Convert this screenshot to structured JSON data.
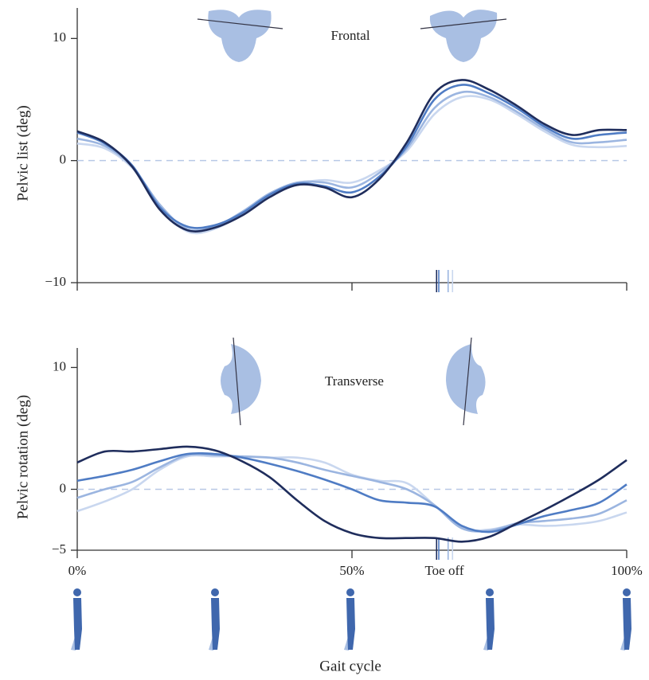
{
  "chart_data": [
    {
      "type": "line",
      "ylabel": "Pelvic list (deg)",
      "annotation": "Frontal",
      "x": [
        0,
        5,
        10,
        15,
        20,
        25,
        30,
        35,
        40,
        45,
        50,
        55,
        60,
        65,
        70,
        75,
        80,
        85,
        90,
        95,
        100
      ],
      "xlim": [
        0,
        100
      ],
      "xticks": [
        0,
        50,
        100
      ],
      "show_xtick_labels": false,
      "ylim": [
        -10,
        12.5
      ],
      "yticks": [
        {
          "value": -10,
          "label": "−10"
        },
        0,
        10
      ],
      "reference_line": 0,
      "series": [
        {
          "color": "#c9d7ef",
          "toe_off": 68.3,
          "values": [
            1.4,
            1.0,
            -0.6,
            -3.6,
            -5.8,
            -5.6,
            -4.3,
            -2.7,
            -1.9,
            -1.6,
            -1.8,
            -0.8,
            0.8,
            3.8,
            5.2,
            5.0,
            3.8,
            2.4,
            1.3,
            1.1,
            1.2
          ]
        },
        {
          "color": "#9bb5e0",
          "toe_off": 67.5,
          "values": [
            1.8,
            1.2,
            -0.5,
            -3.6,
            -5.6,
            -5.4,
            -4.2,
            -2.7,
            -1.8,
            -1.8,
            -2.2,
            -1.0,
            1.0,
            4.3,
            5.6,
            5.2,
            4.0,
            2.6,
            1.5,
            1.5,
            1.7
          ]
        },
        {
          "color": "#4f7cc4",
          "toe_off": 65.8,
          "values": [
            2.3,
            1.4,
            -0.4,
            -3.8,
            -5.4,
            -5.3,
            -4.3,
            -2.8,
            -1.9,
            -2.1,
            -2.6,
            -1.3,
            1.2,
            5.0,
            6.2,
            5.5,
            4.3,
            2.8,
            1.8,
            2.1,
            2.3
          ]
        },
        {
          "color": "#1f2d5c",
          "toe_off": 65.4,
          "values": [
            2.4,
            1.5,
            -0.5,
            -4.0,
            -5.7,
            -5.5,
            -4.5,
            -3.0,
            -2.0,
            -2.2,
            -3.0,
            -1.5,
            1.5,
            5.5,
            6.6,
            5.8,
            4.5,
            3.0,
            2.1,
            2.5,
            2.5
          ]
        }
      ]
    },
    {
      "type": "line",
      "ylabel": "Pelvic rotation (deg)",
      "xlabel": "Gait cycle",
      "annotation": "Transverse",
      "toe_off_label": "Toe off",
      "x": [
        0,
        5,
        10,
        15,
        20,
        25,
        30,
        35,
        40,
        45,
        50,
        55,
        60,
        65,
        70,
        75,
        80,
        85,
        90,
        95,
        100
      ],
      "xlim": [
        0,
        100
      ],
      "xticks": [
        {
          "value": 0,
          "label": "0%"
        },
        {
          "value": 50,
          "label": "50%"
        },
        {
          "value": 100,
          "label": "100%"
        }
      ],
      "ylim": [
        -5,
        11.6
      ],
      "yticks": [
        {
          "value": -5,
          "label": "−5"
        },
        0,
        10
      ],
      "reference_line": 0,
      "series": [
        {
          "color": "#c9d7ef",
          "toe_off": 68.3,
          "values": [
            -1.8,
            -1.0,
            0,
            1.6,
            2.7,
            2.7,
            2.7,
            2.6,
            2.6,
            2.2,
            1.2,
            0.7,
            0.5,
            -1.3,
            -3.2,
            -3.3,
            -2.9,
            -3.0,
            -2.9,
            -2.6,
            -1.9
          ]
        },
        {
          "color": "#9bb5e0",
          "toe_off": 67.5,
          "values": [
            -0.7,
            0,
            0.6,
            1.8,
            2.8,
            2.8,
            2.7,
            2.6,
            2.2,
            1.6,
            1.1,
            0.6,
            0,
            -1.3,
            -3.2,
            -3.4,
            -2.8,
            -2.6,
            -2.4,
            -2.0,
            -0.9
          ]
        },
        {
          "color": "#4f7cc4",
          "toe_off": 65.8,
          "values": [
            0.7,
            1.1,
            1.6,
            2.3,
            2.9,
            2.9,
            2.6,
            2.1,
            1.5,
            0.8,
            0,
            -0.9,
            -1.1,
            -1.4,
            -3.0,
            -3.5,
            -2.9,
            -2.2,
            -1.7,
            -1.1,
            0.4
          ]
        },
        {
          "color": "#1f2d5c",
          "toe_off": 65.4,
          "values": [
            2.2,
            3.1,
            3.1,
            3.3,
            3.5,
            3.2,
            2.3,
            1.0,
            -0.9,
            -2.6,
            -3.6,
            -4.0,
            -4.0,
            -4.0,
            -4.3,
            -3.9,
            -2.8,
            -1.7,
            -0.5,
            0.8,
            2.4
          ]
        }
      ]
    }
  ]
}
